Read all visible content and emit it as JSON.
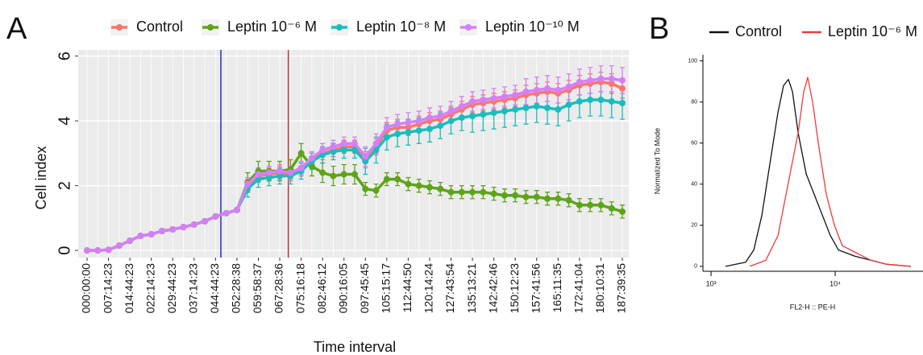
{
  "chart_data": [
    {
      "type": "line",
      "panel": "A",
      "xlabel": "Time interval",
      "ylabel": "Cell index",
      "categories": [
        "000:00:00",
        null,
        "007:14:23",
        null,
        "014:44:23",
        null,
        "022:14:23",
        null,
        "029:44:23",
        null,
        "037:14:23",
        null,
        "044:44:23",
        null,
        "052:28:38",
        null,
        "059:58:37",
        null,
        "067:28:36",
        null,
        "075:16:18",
        null,
        "082:46:12",
        null,
        "090:16:05",
        null,
        "097:45:45",
        null,
        "105:15:17",
        null,
        "112:44:50",
        null,
        "120:14:24",
        null,
        "127:43:54",
        null,
        "135:13:21",
        null,
        "142:42:46",
        null,
        "150:12:23",
        null,
        "157:41:56",
        null,
        "165:11:35",
        null,
        "172:41:04",
        null,
        "180:10:31",
        null,
        "187:39:35"
      ],
      "ylim": [
        -0.22,
        6.19
      ],
      "yticks": [
        0,
        2,
        4,
        6
      ],
      "grid": true,
      "legend": "top",
      "vlines": [
        {
          "x": 12.5,
          "color": "#2b2bd0"
        },
        {
          "x": 18.8,
          "color": "#c83232"
        }
      ],
      "series": [
        {
          "name": "Control",
          "color": "#f8766d",
          "values": [
            0,
            0,
            0.02,
            0.15,
            0.3,
            0.45,
            0.5,
            0.6,
            0.65,
            0.72,
            0.8,
            0.9,
            1.05,
            1.15,
            1.25,
            2.0,
            2.3,
            2.35,
            2.4,
            2.35,
            2.5,
            2.8,
            3.0,
            3.1,
            3.2,
            3.2,
            2.8,
            3.2,
            3.7,
            3.8,
            3.8,
            3.9,
            4.0,
            4.05,
            4.2,
            4.35,
            4.5,
            4.55,
            4.6,
            4.65,
            4.7,
            4.8,
            4.85,
            4.9,
            4.85,
            4.95,
            5.1,
            5.15,
            5.2,
            5.15,
            5.0
          ],
          "errors": [
            0.03,
            0.03,
            0.03,
            0.03,
            0.03,
            0.03,
            0.05,
            0.05,
            0.05,
            0.05,
            0.05,
            0.05,
            0.05,
            0.05,
            0.05,
            0.2,
            0.2,
            0.2,
            0.2,
            0.2,
            0.2,
            0.2,
            0.2,
            0.2,
            0.2,
            0.2,
            0.25,
            0.25,
            0.25,
            0.25,
            0.25,
            0.25,
            0.25,
            0.25,
            0.25,
            0.25,
            0.25,
            0.25,
            0.25,
            0.25,
            0.25,
            0.3,
            0.3,
            0.3,
            0.3,
            0.3,
            0.3,
            0.3,
            0.3,
            0.3,
            0.3
          ]
        },
        {
          "name": "Leptin 10⁻⁶ M",
          "color": "#5ea41a",
          "values": [
            0,
            0,
            0.02,
            0.15,
            0.3,
            0.45,
            0.5,
            0.6,
            0.65,
            0.72,
            0.8,
            0.9,
            1.05,
            1.15,
            1.25,
            2.1,
            2.45,
            2.45,
            2.45,
            2.5,
            3.0,
            2.6,
            2.4,
            2.3,
            2.35,
            2.35,
            1.9,
            1.85,
            2.2,
            2.2,
            2.05,
            2.0,
            1.95,
            1.9,
            1.8,
            1.8,
            1.8,
            1.8,
            1.75,
            1.7,
            1.7,
            1.65,
            1.65,
            1.6,
            1.6,
            1.55,
            1.4,
            1.4,
            1.4,
            1.3,
            1.2
          ],
          "errors": [
            0.03,
            0.03,
            0.03,
            0.03,
            0.03,
            0.03,
            0.05,
            0.05,
            0.05,
            0.05,
            0.05,
            0.05,
            0.05,
            0.05,
            0.05,
            0.3,
            0.3,
            0.3,
            0.3,
            0.3,
            0.3,
            0.3,
            0.3,
            0.3,
            0.3,
            0.3,
            0.2,
            0.2,
            0.2,
            0.2,
            0.2,
            0.2,
            0.2,
            0.2,
            0.2,
            0.2,
            0.2,
            0.2,
            0.2,
            0.2,
            0.2,
            0.2,
            0.2,
            0.2,
            0.2,
            0.2,
            0.2,
            0.2,
            0.2,
            0.2,
            0.2
          ]
        },
        {
          "name": "Leptin 10⁻⁸ M",
          "color": "#19bdbf",
          "values": [
            0,
            0,
            0.02,
            0.15,
            0.3,
            0.45,
            0.5,
            0.6,
            0.65,
            0.72,
            0.8,
            0.9,
            1.05,
            1.15,
            1.25,
            1.9,
            2.2,
            2.25,
            2.3,
            2.3,
            2.45,
            2.75,
            2.95,
            3.05,
            3.1,
            3.1,
            2.75,
            3.1,
            3.5,
            3.6,
            3.65,
            3.7,
            3.75,
            3.85,
            4.0,
            4.1,
            4.15,
            4.2,
            4.25,
            4.3,
            4.35,
            4.4,
            4.45,
            4.4,
            4.35,
            4.5,
            4.6,
            4.65,
            4.65,
            4.6,
            4.55
          ],
          "errors": [
            0.03,
            0.03,
            0.03,
            0.03,
            0.03,
            0.03,
            0.05,
            0.05,
            0.05,
            0.05,
            0.05,
            0.05,
            0.05,
            0.05,
            0.05,
            0.25,
            0.25,
            0.25,
            0.25,
            0.25,
            0.25,
            0.25,
            0.25,
            0.25,
            0.25,
            0.25,
            0.4,
            0.4,
            0.4,
            0.4,
            0.4,
            0.4,
            0.4,
            0.4,
            0.4,
            0.4,
            0.5,
            0.5,
            0.5,
            0.5,
            0.5,
            0.5,
            0.5,
            0.5,
            0.5,
            0.5,
            0.5,
            0.5,
            0.5,
            0.5,
            0.5
          ]
        },
        {
          "name": "Leptin 10⁻¹⁰ M",
          "color": "#d77ef5",
          "values": [
            0,
            0,
            0.02,
            0.15,
            0.3,
            0.45,
            0.5,
            0.6,
            0.65,
            0.72,
            0.8,
            0.9,
            1.05,
            1.15,
            1.25,
            2.05,
            2.35,
            2.4,
            2.45,
            2.4,
            2.55,
            2.85,
            3.1,
            3.2,
            3.3,
            3.3,
            2.9,
            3.3,
            3.8,
            3.9,
            3.95,
            4.0,
            4.1,
            4.15,
            4.3,
            4.45,
            4.6,
            4.65,
            4.7,
            4.75,
            4.8,
            4.9,
            4.95,
            5.0,
            4.95,
            5.05,
            5.2,
            5.25,
            5.3,
            5.3,
            5.25
          ],
          "errors": [
            0.03,
            0.03,
            0.03,
            0.03,
            0.03,
            0.03,
            0.05,
            0.05,
            0.05,
            0.05,
            0.05,
            0.05,
            0.05,
            0.05,
            0.05,
            0.2,
            0.2,
            0.2,
            0.2,
            0.2,
            0.2,
            0.2,
            0.2,
            0.2,
            0.2,
            0.2,
            0.3,
            0.3,
            0.3,
            0.3,
            0.3,
            0.3,
            0.3,
            0.3,
            0.3,
            0.3,
            0.3,
            0.3,
            0.3,
            0.3,
            0.3,
            0.4,
            0.4,
            0.4,
            0.4,
            0.4,
            0.4,
            0.4,
            0.4,
            0.4,
            0.4
          ]
        }
      ]
    },
    {
      "type": "line",
      "panel": "B",
      "xlabel": "FL2-H :: PE-H",
      "ylabel": "Normalized To Mode",
      "xscale": "log",
      "xlim": [
        860,
        51000
      ],
      "xticks": [
        {
          "value": 1000,
          "label": "10³"
        },
        {
          "value": 10000,
          "label": "10⁴"
        }
      ],
      "ylim": [
        -2.4,
        103
      ],
      "yticks": [
        0,
        20,
        40,
        60,
        80,
        100
      ],
      "legend": "top",
      "series": [
        {
          "name": "Control",
          "color": "#111111",
          "x": [
            1310,
            1900,
            2210,
            2570,
            2980,
            3460,
            3840,
            4200,
            4530,
            5030,
            5840,
            6780,
            7870,
            9140,
            10620,
            14320,
            19320,
            26060,
            40750
          ],
          "values": [
            0,
            2,
            8,
            25,
            50,
            75,
            88,
            91,
            85,
            65,
            45,
            35,
            25,
            15,
            8,
            5,
            3,
            1,
            0
          ]
        },
        {
          "name": "Leptin 10⁻⁶ M",
          "color": "#ee3b3b",
          "x": [
            2050,
            2765,
            3460,
            4330,
            5030,
            5580,
            6010,
            6580,
            7310,
            8480,
            9860,
            11430,
            14320,
            19320,
            26060,
            40750
          ],
          "values": [
            0,
            3,
            15,
            45,
            65,
            85,
            92,
            80,
            60,
            35,
            20,
            10,
            7,
            3,
            1,
            0
          ]
        }
      ]
    }
  ]
}
